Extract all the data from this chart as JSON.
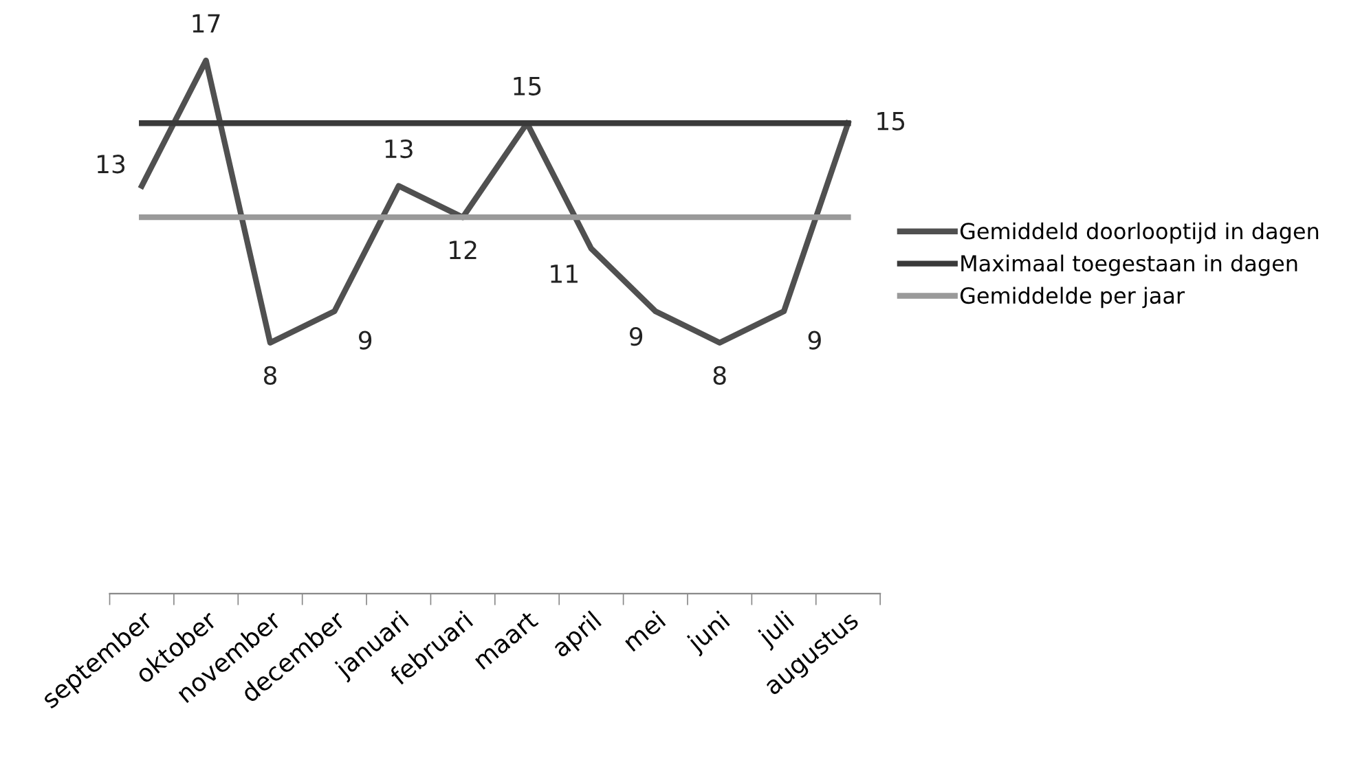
{
  "chart_data": {
    "type": "line",
    "categories": [
      "september",
      "oktober",
      "november",
      "december",
      "januari",
      "februari",
      "maart",
      "april",
      "mei",
      "juni",
      "juli",
      "augustus"
    ],
    "series": [
      {
        "name": "Gemiddeld doorlooptijd in dagen",
        "color": "#505050",
        "values": [
          13,
          17,
          8,
          9,
          13,
          12,
          15,
          11,
          9,
          8,
          9,
          15
        ],
        "value_labels": [
          "13",
          "17",
          "8",
          "9",
          "13",
          "12",
          "15",
          "11",
          "9",
          "8",
          "9",
          "15"
        ]
      },
      {
        "name": "Maximaal toegestaan in dagen",
        "color": "#3a3a3a",
        "values": [
          15,
          15,
          15,
          15,
          15,
          15,
          15,
          15,
          15,
          15,
          15,
          15
        ]
      },
      {
        "name": "Gemiddelde per jaar",
        "color": "#9a9a9a",
        "values": [
          12,
          12,
          12,
          12,
          12,
          12,
          12,
          12,
          12,
          12,
          12,
          12
        ]
      }
    ],
    "tick_labels": "x",
    "grid": false,
    "legend": "right",
    "marker": "none",
    "line_style": "solid"
  }
}
